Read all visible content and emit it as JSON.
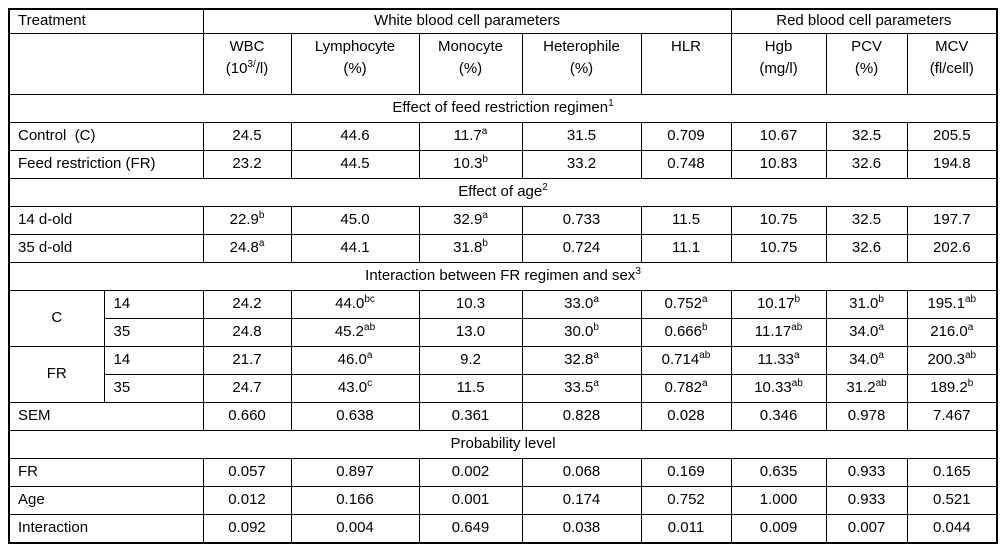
{
  "table": {
    "header": {
      "treatment": "Treatment",
      "group_wbc": "White blood cell parameters",
      "group_rbc": "Red blood cell parameters",
      "columns": [
        {
          "name": "WBC",
          "unit": "(10[3/]/l)"
        },
        {
          "name": "Lymphocyte",
          "unit": "(%)"
        },
        {
          "name": "Monocyte",
          "unit": "(%)"
        },
        {
          "name": "Heterophile",
          "unit": "(%)"
        },
        {
          "name": "HLR",
          "unit": ""
        },
        {
          "name": "Hgb",
          "unit": "(mg/l)"
        },
        {
          "name": "PCV",
          "unit": "(%)"
        },
        {
          "name": "MCV",
          "unit": "(fl/cell)"
        }
      ]
    },
    "rows": [
      {
        "type": "section",
        "label": "Effect of feed restriction regimen",
        "sup": "1"
      },
      {
        "type": "data",
        "label": "Control  (C)",
        "cells": [
          "24.5",
          "44.6",
          "11.7[a]",
          "31.5",
          "0.709",
          "10.67",
          "32.5",
          "205.5"
        ]
      },
      {
        "type": "data",
        "label": "Feed restriction (FR)",
        "cells": [
          "23.2",
          "44.5",
          "10.3[b]",
          "33.2",
          "0.748",
          "10.83",
          "32.6",
          "194.8"
        ]
      },
      {
        "type": "section",
        "label": "Effect of age",
        "sup": "2"
      },
      {
        "type": "data",
        "label": "14 d-old",
        "cells": [
          "22.9[b]",
          "45.0",
          "32.9[a]",
          "0.733",
          "11.5",
          "10.75",
          "32.5",
          "197.7"
        ]
      },
      {
        "type": "data",
        "label": "35 d-old",
        "cells": [
          "24.8[a]",
          "44.1",
          "31.8[b]",
          "0.724",
          "11.1",
          "10.75",
          "32.6",
          "202.6"
        ]
      },
      {
        "type": "section",
        "label": "Interaction between FR regimen and sex",
        "sup": "3"
      },
      {
        "type": "data2",
        "group": "C",
        "group_rowspan": 2,
        "label2": "14",
        "cells": [
          "24.2",
          "44.0[bc]",
          "10.3",
          "33.0[a]",
          "0.752[a]",
          "10.17[b]",
          "31.0[b]",
          "195.1[ab]"
        ]
      },
      {
        "type": "data2",
        "label2": "35",
        "cells": [
          "24.8",
          "45.2[ab]",
          "13.0",
          "30.0[b]",
          "0.666[b]",
          "11.17[ab]",
          "34.0[a]",
          "216.0[a]"
        ]
      },
      {
        "type": "data2",
        "group": "FR",
        "group_rowspan": 2,
        "label2": "14",
        "cells": [
          "21.7",
          "46.0[a]",
          "9.2",
          "32.8[a]",
          "0.714[ab]",
          "11.33[a]",
          "34.0[a]",
          "200.3[ab]"
        ]
      },
      {
        "type": "data2",
        "label2": "35",
        "cells": [
          "24.7",
          "43.0[c]",
          "11.5",
          "33.5[a]",
          "0.782[a]",
          "10.33[ab]",
          "31.2[ab]",
          "189.2[b]"
        ]
      },
      {
        "type": "data",
        "label": "SEM",
        "cells": [
          "0.660",
          "0.638",
          "0.361",
          "0.828",
          "0.028",
          "0.346",
          "0.978",
          "7.467"
        ]
      },
      {
        "type": "section",
        "label": "Probability level",
        "sup": ""
      },
      {
        "type": "data",
        "label": "FR",
        "cells": [
          "0.057",
          "0.897",
          "0.002",
          "0.068",
          "0.169",
          "0.635",
          "0.933",
          "0.165"
        ]
      },
      {
        "type": "data",
        "label": "Age",
        "cells": [
          "0.012",
          "0.166",
          "0.001",
          "0.174",
          "0.752",
          "1.000",
          "0.933",
          "0.521"
        ]
      },
      {
        "type": "data",
        "label": "Interaction",
        "cells": [
          "0.092",
          "0.004",
          "0.649",
          "0.038",
          "0.011",
          "0.009",
          "0.007",
          "0.044"
        ]
      }
    ]
  }
}
